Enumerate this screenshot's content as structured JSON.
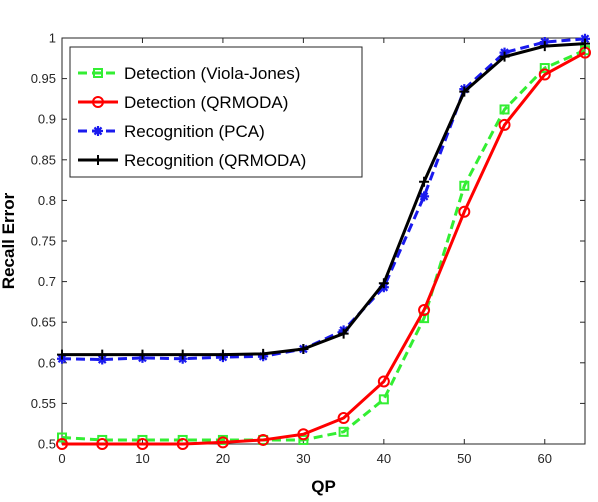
{
  "chart_data": {
    "type": "line",
    "title": "",
    "xlabel": "QP",
    "ylabel": "Recall Error",
    "xlim": [
      0,
      65
    ],
    "ylim": [
      0.5,
      1
    ],
    "xticks": [
      "0",
      "10",
      "20",
      "30",
      "40",
      "50",
      "60"
    ],
    "yticks": [
      "0.5",
      "0.55",
      "0.6",
      "0.65",
      "0.7",
      "0.75",
      "0.8",
      "0.85",
      "0.9",
      "0.95",
      "1"
    ],
    "grid": false,
    "legend_position": "top-left",
    "x": [
      0,
      5,
      10,
      15,
      20,
      25,
      30,
      35,
      40,
      45,
      50,
      55,
      60,
      65
    ],
    "series": [
      {
        "name": "Detection (Viola-Jones)",
        "color": "#33ee33",
        "line": "dashed",
        "marker": "square",
        "values": [
          0.508,
          0.505,
          0.505,
          0.505,
          0.505,
          0.505,
          0.505,
          0.515,
          0.555,
          0.655,
          0.818,
          0.912,
          0.963,
          0.985
        ]
      },
      {
        "name": "Detection (QRMODA)",
        "color": "#ff0000",
        "line": "solid",
        "marker": "circle",
        "values": [
          0.5,
          0.5,
          0.5,
          0.5,
          0.502,
          0.505,
          0.512,
          0.532,
          0.577,
          0.665,
          0.786,
          0.893,
          0.955,
          0.982
        ]
      },
      {
        "name": "Recognition (PCA)",
        "color": "#1a1aee",
        "line": "dashed",
        "marker": "asterisk",
        "values": [
          0.605,
          0.604,
          0.606,
          0.605,
          0.607,
          0.608,
          0.617,
          0.64,
          0.693,
          0.805,
          0.937,
          0.982,
          0.995,
          0.999
        ]
      },
      {
        "name": "Recognition (QRMODA)",
        "color": "#000000",
        "line": "solid",
        "marker": "plus",
        "values": [
          0.61,
          0.61,
          0.61,
          0.61,
          0.61,
          0.611,
          0.617,
          0.636,
          0.698,
          0.823,
          0.934,
          0.977,
          0.99,
          0.993
        ]
      }
    ]
  }
}
